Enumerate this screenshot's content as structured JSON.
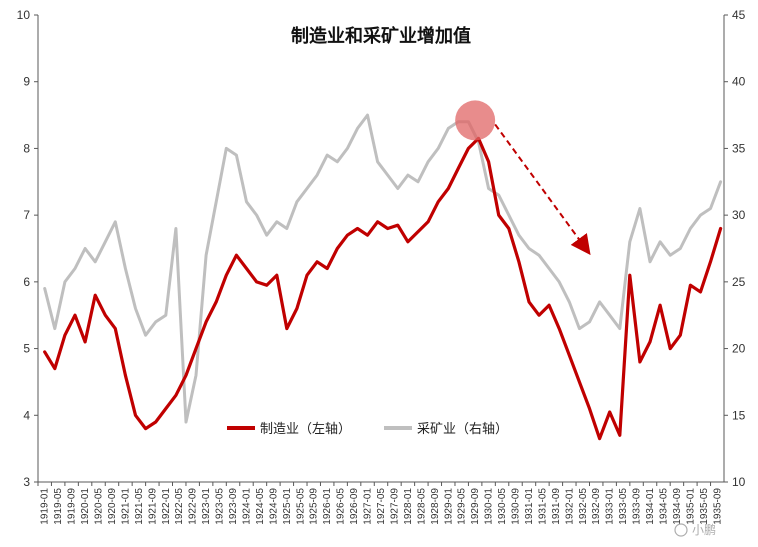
{
  "chart_data": {
    "type": "line",
    "title": "制造业和采矿业增加值",
    "y_left": {
      "ylim": [
        3,
        10
      ],
      "ticks": [
        "3",
        "4",
        "5",
        "6",
        "7",
        "8",
        "9",
        "10"
      ]
    },
    "y_right": {
      "ylim": [
        10,
        45
      ],
      "ticks": [
        "10",
        "15",
        "20",
        "25",
        "30",
        "35",
        "40",
        "45"
      ]
    },
    "x_ticks": [
      "1919-01",
      "1919-05",
      "1919-09",
      "1920-01",
      "1920-05",
      "1920-09",
      "1921-01",
      "1921-05",
      "1921-09",
      "1922-01",
      "1922-05",
      "1922-09",
      "1923-01",
      "1923-05",
      "1923-09",
      "1924-01",
      "1924-05",
      "1924-09",
      "1925-01",
      "1925-05",
      "1925-09",
      "1926-01",
      "1926-05",
      "1926-09",
      "1927-01",
      "1927-05",
      "1927-09",
      "1928-01",
      "1928-05",
      "1928-09",
      "1929-01",
      "1929-05",
      "1929-09",
      "1930-01",
      "1930-05",
      "1930-09",
      "1931-01",
      "1931-05",
      "1931-09",
      "1932-01",
      "1932-05",
      "1932-09",
      "1933-01",
      "1933-05",
      "1933-09",
      "1934-01",
      "1934-05",
      "1934-09",
      "1935-01",
      "1935-05",
      "1935-09"
    ],
    "legend_position": "center",
    "series": [
      {
        "name": "制造业（左轴）",
        "axis": "left",
        "color": "#C00000",
        "x": [
          "1919-01",
          "1919-04",
          "1919-07",
          "1919-10",
          "1920-01",
          "1920-04",
          "1920-07",
          "1920-10",
          "1921-01",
          "1921-04",
          "1921-07",
          "1921-10",
          "1922-01",
          "1922-04",
          "1922-07",
          "1922-10",
          "1923-01",
          "1923-04",
          "1923-07",
          "1923-10",
          "1924-01",
          "1924-04",
          "1924-07",
          "1924-10",
          "1925-01",
          "1925-04",
          "1925-07",
          "1925-10",
          "1926-01",
          "1926-04",
          "1926-07",
          "1926-10",
          "1927-01",
          "1927-04",
          "1927-07",
          "1927-10",
          "1928-01",
          "1928-04",
          "1928-07",
          "1928-10",
          "1929-01",
          "1929-04",
          "1929-07",
          "1929-10",
          "1930-01",
          "1930-04",
          "1930-07",
          "1930-10",
          "1931-01",
          "1931-04",
          "1931-07",
          "1931-10",
          "1932-01",
          "1932-04",
          "1932-07",
          "1932-10",
          "1933-01",
          "1933-04",
          "1933-07",
          "1933-10",
          "1934-01",
          "1934-04",
          "1934-07",
          "1934-10",
          "1935-01",
          "1935-04",
          "1935-07",
          "1935-10"
        ],
        "values": [
          4.95,
          4.7,
          5.2,
          5.5,
          5.1,
          5.8,
          5.5,
          5.3,
          4.6,
          4.0,
          3.8,
          3.9,
          4.1,
          4.3,
          4.6,
          5.0,
          5.4,
          5.7,
          6.1,
          6.4,
          6.2,
          6.0,
          5.95,
          6.1,
          5.3,
          5.6,
          6.1,
          6.3,
          6.2,
          6.5,
          6.7,
          6.8,
          6.7,
          6.9,
          6.8,
          6.85,
          6.6,
          6.75,
          6.9,
          7.2,
          7.4,
          7.7,
          8.0,
          8.15,
          7.8,
          7.0,
          6.8,
          6.3,
          5.7,
          5.5,
          5.65,
          5.3,
          4.9,
          4.5,
          4.1,
          3.65,
          4.05,
          3.7,
          6.1,
          4.8,
          5.1,
          5.65,
          5.0,
          5.2,
          5.95,
          5.85,
          6.3,
          6.8
        ]
      },
      {
        "name": "采矿业（右轴）",
        "axis": "right",
        "color": "#BFBFBF",
        "x": [
          "1919-01",
          "1919-04",
          "1919-07",
          "1919-10",
          "1920-01",
          "1920-04",
          "1920-07",
          "1920-10",
          "1921-01",
          "1921-04",
          "1921-07",
          "1921-10",
          "1922-01",
          "1922-04",
          "1922-07",
          "1922-10",
          "1923-01",
          "1923-04",
          "1923-07",
          "1923-10",
          "1924-01",
          "1924-04",
          "1924-07",
          "1924-10",
          "1925-01",
          "1925-04",
          "1925-07",
          "1925-10",
          "1926-01",
          "1926-04",
          "1926-07",
          "1926-10",
          "1927-01",
          "1927-04",
          "1927-07",
          "1927-10",
          "1928-01",
          "1928-04",
          "1928-07",
          "1928-10",
          "1929-01",
          "1929-04",
          "1929-07",
          "1929-10",
          "1930-01",
          "1930-04",
          "1930-07",
          "1930-10",
          "1931-01",
          "1931-04",
          "1931-07",
          "1931-10",
          "1932-01",
          "1932-04",
          "1932-07",
          "1932-10",
          "1933-01",
          "1933-04",
          "1933-07",
          "1933-10",
          "1934-01",
          "1934-04",
          "1934-07",
          "1934-10",
          "1935-01",
          "1935-04",
          "1935-07",
          "1935-10"
        ],
        "values": [
          24.5,
          21.5,
          25.0,
          26.0,
          27.5,
          26.5,
          28.0,
          29.5,
          26.0,
          23.0,
          21.0,
          22.0,
          22.5,
          29.0,
          14.5,
          18.0,
          27.0,
          31.0,
          35.0,
          34.5,
          31.0,
          30.0,
          28.5,
          29.5,
          29.0,
          31.0,
          32.0,
          33.0,
          34.5,
          34.0,
          35.0,
          36.5,
          37.5,
          34.0,
          33.0,
          32.0,
          33.0,
          32.5,
          34.0,
          35.0,
          36.5,
          37.0,
          37.0,
          35.5,
          32.0,
          31.5,
          30.0,
          28.5,
          27.5,
          27.0,
          26.0,
          25.0,
          23.5,
          21.5,
          22.0,
          23.5,
          22.5,
          21.5,
          28.0,
          30.5,
          26.5,
          28.0,
          27.0,
          27.5,
          29.0,
          30.0,
          30.5,
          32.5
        ]
      }
    ],
    "annotation": {
      "marker_at": "1929-09",
      "arrow_to": "1932-09"
    }
  },
  "watermark": "小鹏"
}
